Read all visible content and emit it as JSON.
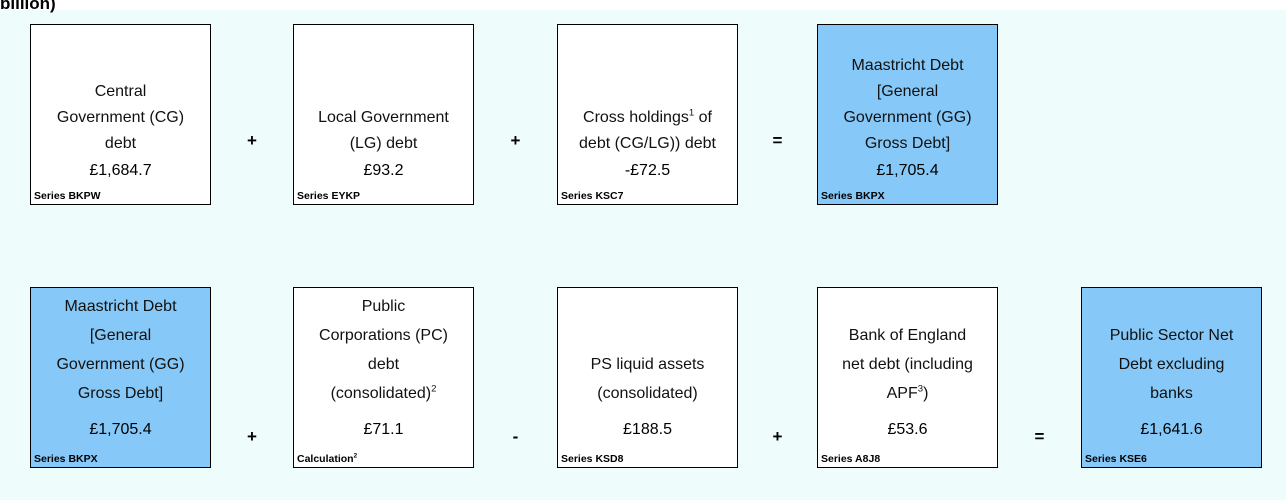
{
  "header": {
    "title": "billion)"
  },
  "rows": [
    {
      "boxes": [
        {
          "label": [
            [
              "Central"
            ],
            [
              "Government (CG)"
            ],
            [
              "debt"
            ]
          ],
          "value": "£1,684.7",
          "series": [
            "Series BKPW"
          ],
          "highlight": false
        },
        {
          "label": [
            [
              "Local Government"
            ],
            [
              "(LG) debt"
            ]
          ],
          "value": "£93.2",
          "series": [
            "Series EYKP"
          ],
          "highlight": false
        },
        {
          "label": [
            [
              "Cross holdings",
              "1",
              " of"
            ],
            [
              "debt (CG/LG)) debt"
            ]
          ],
          "value": "-£72.5",
          "series": [
            "Series KSC7"
          ],
          "highlight": false
        },
        {
          "label": [
            [
              "Maastricht Debt"
            ],
            [
              "[General"
            ],
            [
              "Government (GG)"
            ],
            [
              "Gross Debt]"
            ]
          ],
          "value": "£1,705.4",
          "series": [
            "Series BKPX"
          ],
          "highlight": true
        }
      ],
      "operators": [
        "+",
        "+",
        "="
      ]
    },
    {
      "boxes": [
        {
          "label": [
            [
              "Maastricht Debt"
            ],
            [
              "[General"
            ],
            [
              "Government (GG)"
            ],
            [
              "Gross Debt]"
            ]
          ],
          "value": "£1,705.4",
          "series": [
            "Series BKPX"
          ],
          "highlight": true
        },
        {
          "label": [
            [
              "Public"
            ],
            [
              "Corporations (PC)"
            ],
            [
              "debt"
            ],
            [
              "(consolidated)",
              "2"
            ]
          ],
          "value": "£71.1",
          "series": [
            "Calculation",
            "2"
          ],
          "highlight": false
        },
        {
          "label": [
            [
              "PS liquid assets"
            ],
            [
              "(consolidated)"
            ]
          ],
          "value": "£188.5",
          "series": [
            "Series KSD8"
          ],
          "highlight": false
        },
        {
          "label": [
            [
              "Bank of England"
            ],
            [
              "net debt (including"
            ],
            [
              "APF",
              "3",
              ")"
            ]
          ],
          "value": "£53.6",
          "series": [
            "Series A8J8"
          ],
          "highlight": false
        },
        {
          "label": [
            [
              "Public Sector Net"
            ],
            [
              "Debt excluding"
            ],
            [
              "banks"
            ]
          ],
          "value": "£1,641.6",
          "series": [
            "Series KSE6"
          ],
          "highlight": true
        }
      ],
      "operators": [
        "+",
        "-",
        "+",
        "="
      ]
    }
  ]
}
